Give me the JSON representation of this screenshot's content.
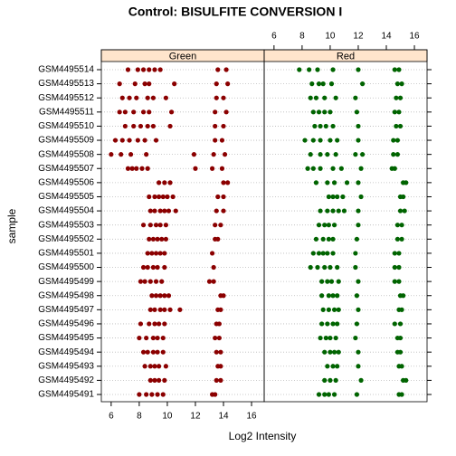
{
  "chart_data": {
    "type": "dotplot",
    "title": "Control: BISULFITE CONVERSION I",
    "x_label": "Log2 Intensity",
    "y_label": "sample",
    "categories": [
      "GSM4495491",
      "GSM4495492",
      "GSM4495493",
      "GSM4495494",
      "GSM4495495",
      "GSM4495496",
      "GSM4495497",
      "GSM4495498",
      "GSM4495499",
      "GSM4495500",
      "GSM4495501",
      "GSM4495502",
      "GSM4495503",
      "GSM4495504",
      "GSM4495505",
      "GSM4495506",
      "GSM4495507",
      "GSM4495508",
      "GSM4495509",
      "GSM4495510",
      "GSM4495511",
      "GSM4495512",
      "GSM4495513",
      "GSM4495514"
    ],
    "xlim": [
      5.3,
      16.9
    ],
    "xticks": [
      6,
      8,
      10,
      12,
      14,
      16
    ],
    "grid": true,
    "series": [
      {
        "name": "Green",
        "color": "#8b0000",
        "values": [
          [
            8.0,
            8.5,
            8.9,
            9.3,
            9.7,
            13.2,
            13.4
          ],
          [
            8.8,
            9.1,
            9.4,
            9.8,
            13.5,
            13.8
          ],
          [
            8.4,
            8.8,
            9.1,
            9.4,
            9.9,
            13.6,
            13.8
          ],
          [
            8.3,
            8.6,
            9.0,
            9.3,
            9.7,
            13.5,
            13.8
          ],
          [
            8.0,
            8.5,
            9.0,
            9.3,
            9.7,
            13.4,
            13.7
          ],
          [
            8.1,
            8.7,
            9.1,
            9.4,
            9.8,
            13.5,
            13.7
          ],
          [
            8.8,
            9.1,
            9.5,
            9.8,
            10.2,
            10.9,
            13.6,
            13.8
          ],
          [
            8.9,
            9.2,
            9.5,
            9.8,
            10.1,
            13.8,
            14.0
          ],
          [
            8.1,
            8.4,
            8.8,
            9.2,
            9.6,
            13.0,
            13.3
          ],
          [
            8.3,
            8.6,
            9.0,
            9.3,
            9.8,
            13.3
          ],
          [
            8.6,
            8.9,
            9.2,
            9.5,
            9.8,
            13.2
          ],
          [
            8.7,
            9.0,
            9.3,
            9.6,
            9.9,
            13.4,
            13.6
          ],
          [
            8.3,
            8.8,
            9.2,
            9.5,
            9.9,
            13.4,
            13.8
          ],
          [
            8.8,
            9.1,
            9.5,
            9.8,
            10.1,
            10.6,
            13.5,
            14.0
          ],
          [
            8.7,
            9.1,
            9.4,
            9.7,
            10.0,
            10.4,
            13.6,
            14.0
          ],
          [
            9.4,
            9.8,
            10.2,
            14.0,
            14.3
          ],
          [
            7.2,
            7.5,
            7.8,
            8.2,
            8.6,
            12.0,
            13.2,
            13.9
          ],
          [
            6.0,
            6.7,
            7.4,
            8.5,
            11.9,
            13.3,
            14.1
          ],
          [
            6.3,
            6.8,
            7.3,
            7.9,
            8.4,
            9.2,
            13.4,
            13.9
          ],
          [
            7.0,
            7.6,
            8.1,
            8.6,
            9.0,
            10.2,
            13.4,
            14.0
          ],
          [
            6.6,
            7.0,
            7.6,
            8.3,
            8.7,
            10.3,
            13.4,
            14.2
          ],
          [
            6.8,
            7.3,
            7.8,
            8.6,
            9.0,
            9.9,
            13.5,
            14.0
          ],
          [
            6.6,
            7.7,
            8.4,
            8.7,
            10.5,
            13.5,
            14.3
          ],
          [
            7.2,
            7.9,
            8.3,
            8.7,
            9.1,
            9.5,
            13.6,
            14.2
          ]
        ]
      },
      {
        "name": "Red",
        "color": "#006400",
        "values": [
          [
            9.2,
            9.6,
            9.9,
            10.3,
            11.9,
            14.9,
            15.1
          ],
          [
            9.6,
            10.0,
            10.4,
            12.2,
            15.2,
            15.4
          ],
          [
            9.8,
            10.2,
            10.5,
            12.0,
            14.9,
            15.1
          ],
          [
            9.6,
            10.0,
            10.3,
            10.6,
            12.0,
            14.8,
            15.0
          ],
          [
            9.3,
            9.7,
            10.0,
            10.4,
            11.8,
            14.8,
            15.0
          ],
          [
            9.4,
            9.8,
            10.2,
            10.5,
            11.9,
            14.6,
            15.0
          ],
          [
            9.5,
            9.9,
            10.3,
            10.6,
            12.0,
            14.9,
            15.1
          ],
          [
            9.4,
            9.9,
            10.2,
            10.5,
            11.9,
            15.0,
            15.2
          ],
          [
            9.4,
            9.8,
            10.1,
            10.6,
            12.0,
            14.6,
            14.9
          ],
          [
            8.6,
            9.1,
            9.6,
            10.0,
            10.5,
            11.8,
            14.6,
            14.9
          ],
          [
            8.8,
            9.2,
            9.5,
            9.8,
            10.2,
            11.8,
            14.6,
            14.9
          ],
          [
            9.0,
            9.5,
            9.9,
            10.2,
            11.9,
            14.8,
            15.1
          ],
          [
            9.2,
            9.6,
            9.9,
            10.3,
            12.0,
            14.8,
            15.1
          ],
          [
            9.3,
            9.8,
            10.2,
            10.6,
            11.0,
            12.0,
            15.0,
            15.3
          ],
          [
            9.9,
            10.2,
            10.5,
            10.9,
            12.2,
            15.0,
            15.2
          ],
          [
            9.0,
            9.8,
            10.3,
            11.2,
            12.0,
            15.2,
            15.4
          ],
          [
            8.4,
            8.8,
            9.3,
            10.2,
            10.8,
            12.2,
            14.4,
            14.6
          ],
          [
            8.6,
            9.3,
            9.8,
            10.4,
            11.8,
            12.3,
            14.5,
            14.8
          ],
          [
            8.2,
            8.8,
            9.3,
            10.0,
            10.5,
            12.0,
            14.5,
            14.8
          ],
          [
            8.9,
            9.3,
            9.7,
            10.2,
            12.0,
            14.7,
            15.0
          ],
          [
            8.8,
            9.2,
            9.6,
            10.0,
            11.9,
            14.6,
            14.9
          ],
          [
            8.6,
            9.0,
            9.6,
            10.4,
            11.8,
            14.7,
            15.0
          ],
          [
            8.7,
            9.2,
            9.5,
            10.1,
            12.3,
            14.8,
            15.1
          ],
          [
            7.8,
            8.5,
            9.1,
            10.2,
            12.0,
            14.6,
            14.9
          ]
        ]
      }
    ]
  }
}
